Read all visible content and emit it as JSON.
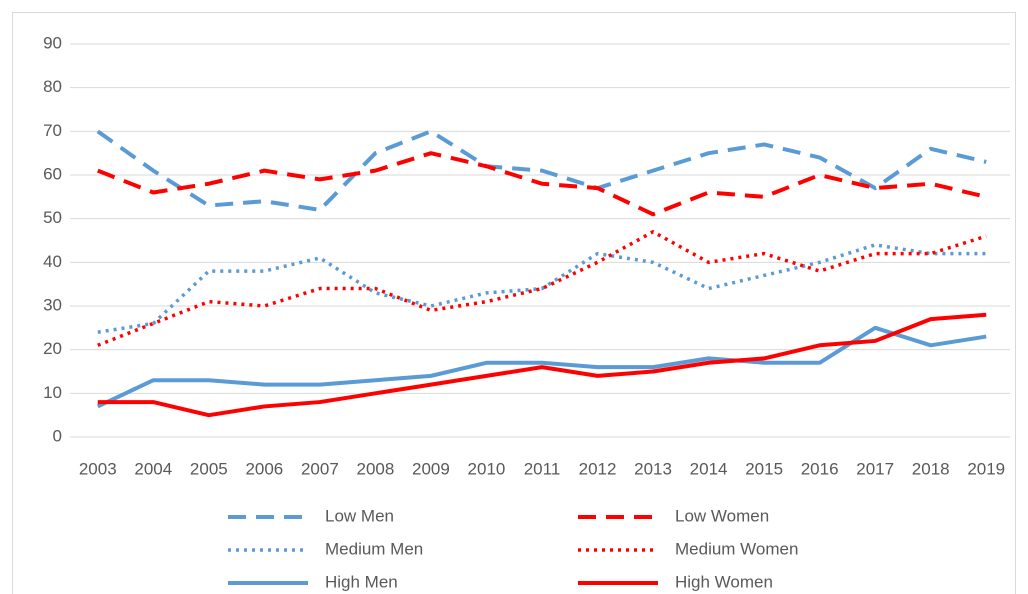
{
  "chart_data": {
    "type": "line",
    "categories": [
      "2003",
      "2004",
      "2005",
      "2006",
      "2007",
      "2008",
      "2009",
      "2010",
      "2011",
      "2012",
      "2013",
      "2014",
      "2015",
      "2016",
      "2017",
      "2018",
      "2019"
    ],
    "series": [
      {
        "name": "Low Men",
        "color": "#5b9bd5",
        "style": "dashed",
        "values": [
          70,
          61,
          53,
          54,
          52,
          65,
          70,
          62,
          61,
          57,
          61,
          65,
          67,
          64,
          57,
          66,
          63
        ]
      },
      {
        "name": "Low Women",
        "color": "#ff0000",
        "style": "dashed",
        "values": [
          61,
          56,
          58,
          61,
          59,
          61,
          65,
          62,
          58,
          57,
          51,
          56,
          55,
          60,
          57,
          58,
          55
        ]
      },
      {
        "name": "Medium Men",
        "color": "#5b9bd5",
        "style": "dotted",
        "values": [
          24,
          26,
          38,
          38,
          41,
          33,
          30,
          33,
          34,
          42,
          40,
          34,
          37,
          40,
          44,
          42,
          42
        ]
      },
      {
        "name": "Medium Women",
        "color": "#ff0000",
        "style": "dotted",
        "values": [
          21,
          26,
          31,
          30,
          34,
          34,
          29,
          31,
          34,
          40,
          47,
          40,
          42,
          38,
          42,
          42,
          46
        ]
      },
      {
        "name": "High Men",
        "color": "#5b9bd5",
        "style": "solid",
        "values": [
          7,
          13,
          13,
          12,
          12,
          13,
          14,
          17,
          17,
          16,
          16,
          18,
          17,
          17,
          25,
          21,
          23
        ]
      },
      {
        "name": "High Women",
        "color": "#ff0000",
        "style": "solid",
        "values": [
          8,
          8,
          5,
          7,
          8,
          10,
          12,
          14,
          16,
          14,
          15,
          17,
          18,
          21,
          22,
          27,
          28
        ]
      }
    ],
    "ylim": [
      0,
      90
    ],
    "yticks": [
      0,
      10,
      20,
      30,
      40,
      50,
      60,
      70,
      80,
      90
    ],
    "grid": true,
    "legend": "bottom"
  }
}
